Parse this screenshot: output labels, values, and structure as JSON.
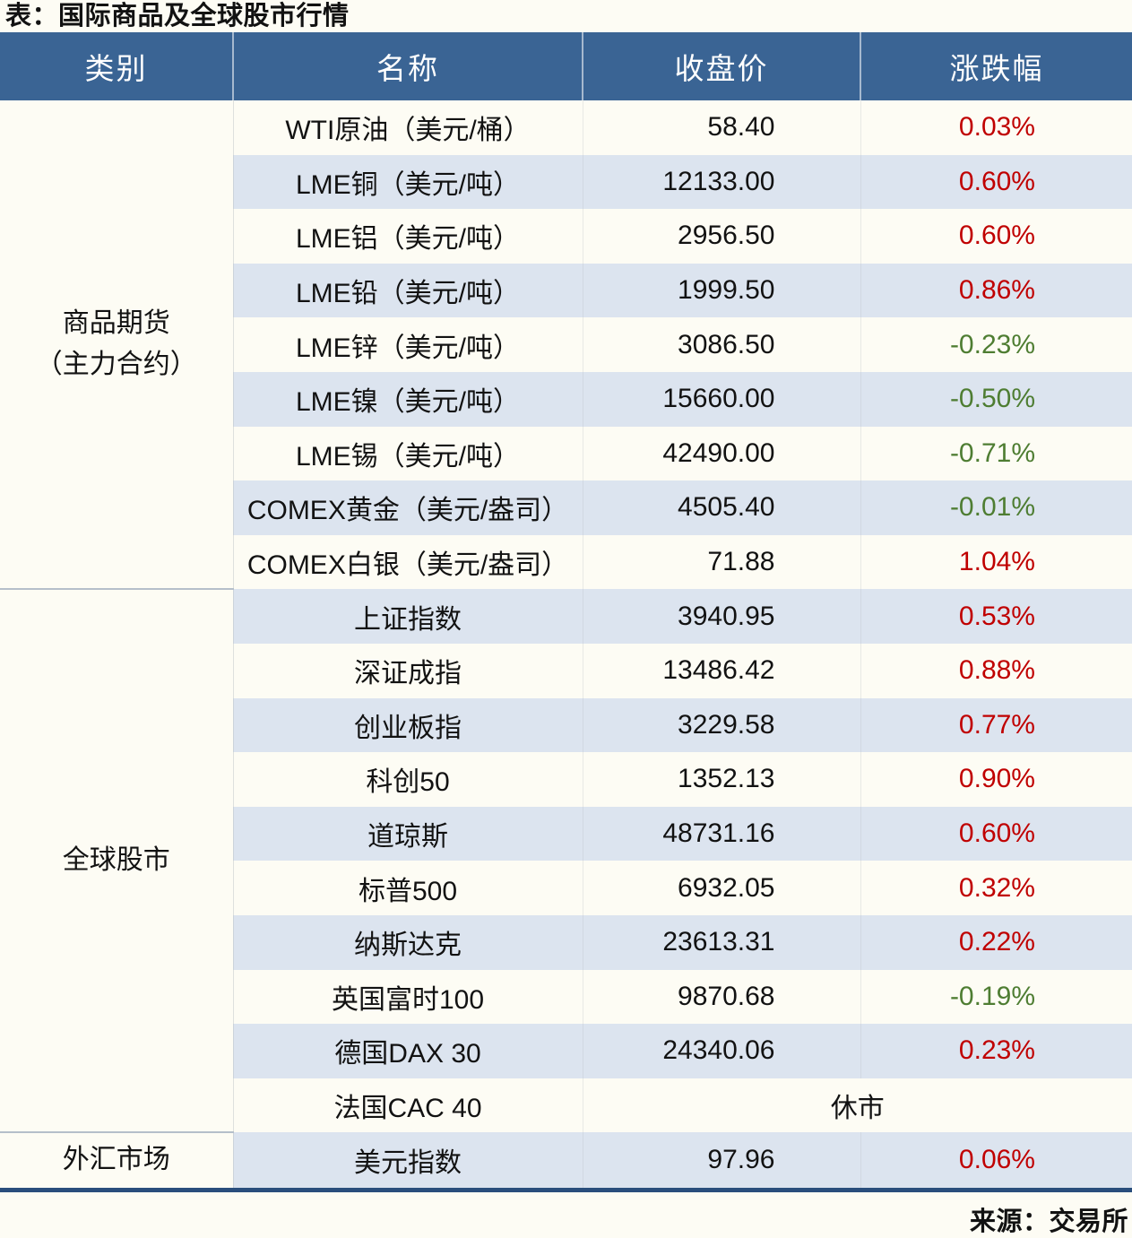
{
  "title": "表：国际商品及全球股市行情",
  "source": "来源：交易所",
  "colors": {
    "header_bg": "#3A6494",
    "row_alt": "#DCE4EF",
    "page_bg": "#FDFCF4",
    "up_red": "#C00000",
    "down_green": "#4E7D32",
    "bottom_rule": "#2A4E7C"
  },
  "table": {
    "headers": [
      "类别",
      "名称",
      "收盘价",
      "涨跌幅"
    ],
    "groups": [
      {
        "category": "商品期货\n（主力合约）",
        "rows": [
          {
            "name": "WTI原油（美元/桶）",
            "close": "58.40",
            "change": "0.03%",
            "dir": "up"
          },
          {
            "name": "LME铜（美元/吨）",
            "close": "12133.00",
            "change": "0.60%",
            "dir": "up"
          },
          {
            "name": "LME铝（美元/吨）",
            "close": "2956.50",
            "change": "0.60%",
            "dir": "up"
          },
          {
            "name": "LME铅（美元/吨）",
            "close": "1999.50",
            "change": "0.86%",
            "dir": "up"
          },
          {
            "name": "LME锌（美元/吨）",
            "close": "3086.50",
            "change": "-0.23%",
            "dir": "down"
          },
          {
            "name": "LME镍（美元/吨）",
            "close": "15660.00",
            "change": "-0.50%",
            "dir": "down"
          },
          {
            "name": "LME锡（美元/吨）",
            "close": "42490.00",
            "change": "-0.71%",
            "dir": "down"
          },
          {
            "name": "COMEX黄金（美元/盎司）",
            "close": "4505.40",
            "change": "-0.01%",
            "dir": "down"
          },
          {
            "name": "COMEX白银（美元/盎司）",
            "close": "71.88",
            "change": "1.04%",
            "dir": "up"
          }
        ]
      },
      {
        "category": "全球股市",
        "rows": [
          {
            "name": "上证指数",
            "close": "3940.95",
            "change": "0.53%",
            "dir": "up"
          },
          {
            "name": "深证成指",
            "close": "13486.42",
            "change": "0.88%",
            "dir": "up"
          },
          {
            "name": "创业板指",
            "close": "3229.58",
            "change": "0.77%",
            "dir": "up"
          },
          {
            "name": "科创50",
            "close": "1352.13",
            "change": "0.90%",
            "dir": "up"
          },
          {
            "name": "道琼斯",
            "close": "48731.16",
            "change": "0.60%",
            "dir": "up"
          },
          {
            "name": "标普500",
            "close": "6932.05",
            "change": "0.32%",
            "dir": "up"
          },
          {
            "name": "纳斯达克",
            "close": "23613.31",
            "change": "0.22%",
            "dir": "up"
          },
          {
            "name": "英国富时100",
            "close": "9870.68",
            "change": "-0.19%",
            "dir": "down"
          },
          {
            "name": "德国DAX 30",
            "close": "24340.06",
            "change": "0.23%",
            "dir": "up"
          },
          {
            "name": "法国CAC 40",
            "status": "休市"
          }
        ]
      },
      {
        "category": "外汇市场",
        "rows": [
          {
            "name": "美元指数",
            "close": "97.96",
            "change": "0.06%",
            "dir": "up"
          }
        ]
      }
    ]
  }
}
